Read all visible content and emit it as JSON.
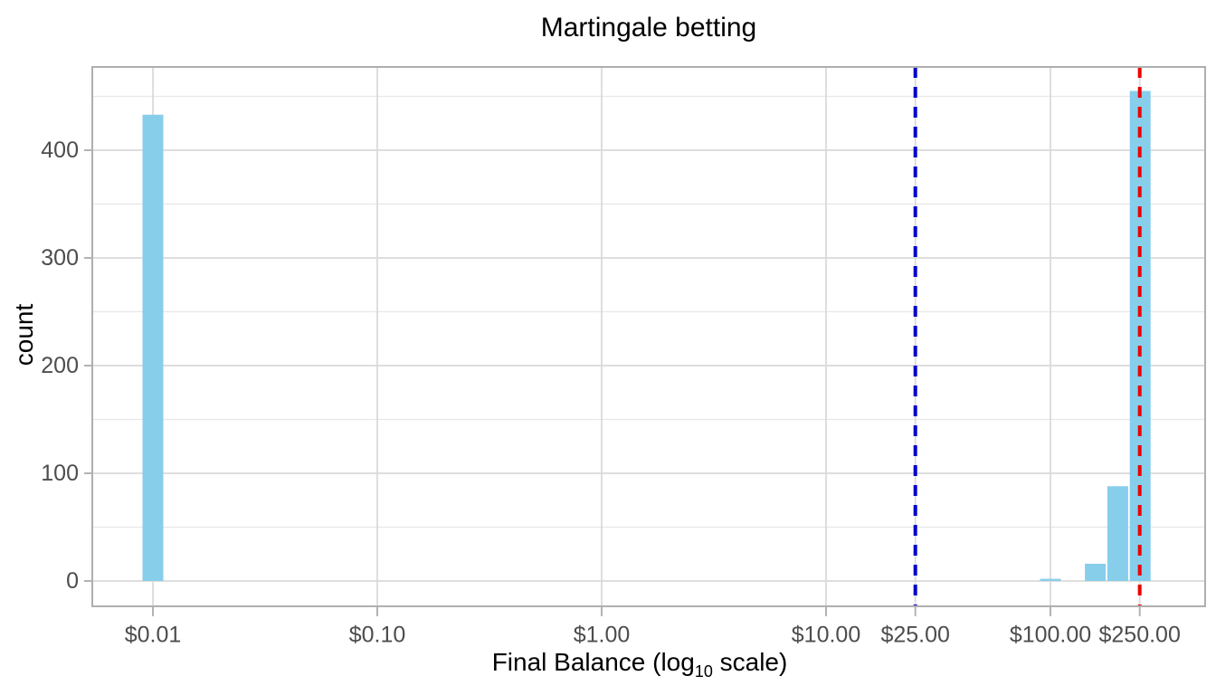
{
  "chart_data": {
    "type": "bar",
    "subtype": "histogram",
    "title": "Martingale betting",
    "xlabel": "Final Balance (log10 scale)",
    "xlabel_parts": {
      "prefix": "Final Balance (log",
      "subscript": "10",
      "suffix": " scale)"
    },
    "ylabel": "count",
    "x_scale": "log10",
    "grid": true,
    "legend": false,
    "xlim": [
      0.0055,
      490
    ],
    "ylim": [
      0,
      477
    ],
    "x_ticks": [
      {
        "value": 0.01,
        "label": "$0.01"
      },
      {
        "value": 0.1,
        "label": "$0.10"
      },
      {
        "value": 1.0,
        "label": "$1.00"
      },
      {
        "value": 10.0,
        "label": "$10.00"
      },
      {
        "value": 25.0,
        "label": "$25.00"
      },
      {
        "value": 100.0,
        "label": "$100.00"
      },
      {
        "value": 250.0,
        "label": "$250.00"
      }
    ],
    "y_ticks": [
      {
        "value": 0,
        "label": "0"
      },
      {
        "value": 100,
        "label": "100"
      },
      {
        "value": 200,
        "label": "200"
      },
      {
        "value": 300,
        "label": "300"
      },
      {
        "value": 400,
        "label": "400"
      }
    ],
    "y_minor_ticks": [
      50,
      150,
      250,
      350,
      450
    ],
    "bin_width_log10": 0.1,
    "bars": [
      {
        "center_log10": -2.0,
        "approx_value": "$0.01",
        "count": 433
      },
      {
        "center_log10": 2.0,
        "approx_value": "$100",
        "count": 2
      },
      {
        "center_log10": 2.2,
        "approx_value": "$158",
        "count": 16
      },
      {
        "center_log10": 2.3,
        "approx_value": "$200",
        "count": 88
      },
      {
        "center_log10": 2.4,
        "approx_value": "$251",
        "count": 455
      }
    ],
    "vlines": [
      {
        "x_value": 25,
        "label": "$25.00",
        "color": "#0000CD",
        "style": "dashed"
      },
      {
        "x_value": 250,
        "label": "$250.00",
        "color": "#EE0000",
        "style": "dashed"
      }
    ],
    "colors": {
      "bar_fill": "#87CEEB",
      "grid_major": "#D9D9D9",
      "grid_minor": "#E7E7E7",
      "panel_border": "#AFAFAF",
      "tick_mark": "#B3B3B3",
      "tick_label": "#4D4D4D",
      "title_text": "#000000",
      "background": "#FFFFFF"
    }
  }
}
